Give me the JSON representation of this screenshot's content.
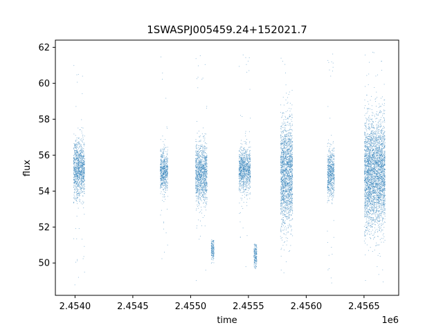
{
  "chart_data": {
    "type": "scatter",
    "title": "1SWASPJ005459.24+152021.7",
    "xlabel": "time",
    "ylabel": "flux",
    "x_offset_label": "1e6",
    "xlim": [
      2453830,
      2456800
    ],
    "ylim": [
      48.2,
      62.4
    ],
    "x_ticks": [
      2454000,
      2454500,
      2455000,
      2455500,
      2456000,
      2456500
    ],
    "x_tick_labels": [
      "2.4540",
      "2.4545",
      "2.4550",
      "2.4555",
      "2.4560",
      "2.4565"
    ],
    "y_ticks": [
      50,
      52,
      54,
      56,
      58,
      60,
      62
    ],
    "y_tick_labels": [
      "50",
      "52",
      "54",
      "56",
      "58",
      "60",
      "62"
    ],
    "grid": false,
    "marker_color": "#1f77b4",
    "series": [
      {
        "clusters": [
          {
            "x_start": 2453985,
            "x_end": 2454080,
            "y_center": 55.3,
            "y_spread": 0.8,
            "y_min": 48.8,
            "y_max": 61.6
          },
          {
            "x_start": 2454735,
            "x_end": 2454800,
            "y_center": 55.1,
            "y_spread": 0.6,
            "y_min": 48.8,
            "y_max": 61.6
          },
          {
            "x_start": 2455040,
            "x_end": 2455140,
            "y_center": 55.0,
            "y_spread": 0.8,
            "y_min": 48.8,
            "y_max": 61.6
          },
          {
            "x_start": 2455175,
            "x_end": 2455200,
            "y_center": 50.8,
            "y_spread": 0.3,
            "y_min": 50.0,
            "y_max": 51.4
          },
          {
            "x_start": 2455415,
            "x_end": 2455515,
            "y_center": 55.2,
            "y_spread": 0.6,
            "y_min": 49.8,
            "y_max": 61.7
          },
          {
            "x_start": 2455545,
            "x_end": 2455570,
            "y_center": 50.5,
            "y_spread": 0.4,
            "y_min": 49.7,
            "y_max": 51.1
          },
          {
            "x_start": 2455775,
            "x_end": 2455880,
            "y_center": 55.0,
            "y_spread": 1.4,
            "y_min": 48.8,
            "y_max": 61.8
          },
          {
            "x_start": 2456180,
            "x_end": 2456240,
            "y_center": 55.0,
            "y_spread": 0.7,
            "y_min": 48.8,
            "y_max": 62.0
          },
          {
            "x_start": 2456500,
            "x_end": 2456680,
            "y_center": 55.0,
            "y_spread": 1.5,
            "y_min": 48.8,
            "y_max": 61.8
          }
        ]
      }
    ]
  }
}
